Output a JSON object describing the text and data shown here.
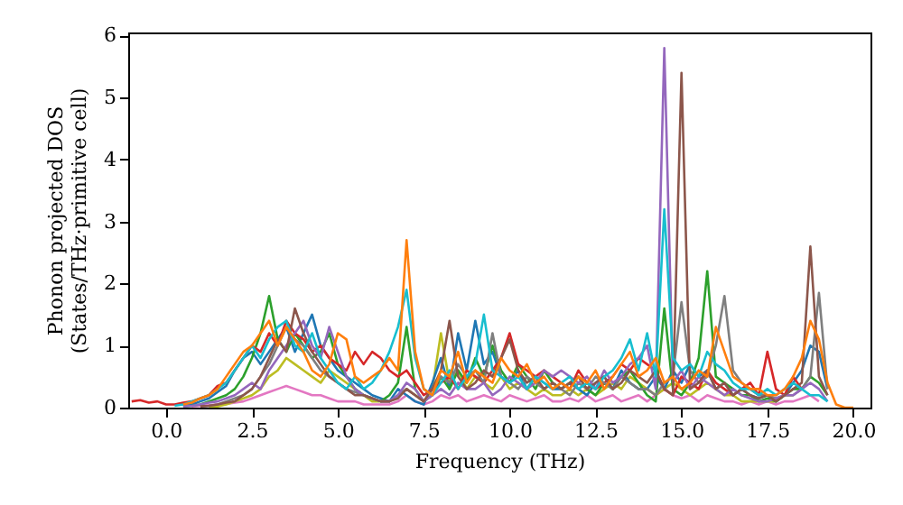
{
  "chart_data": {
    "type": "line",
    "xlabel": "Frequency (THz)",
    "ylabel": "Phonon projected DOS\n(States/THz·primitive cell)",
    "x": [
      -1,
      -0.75,
      -0.5,
      -0.25,
      0,
      0.25,
      0.5,
      0.75,
      1,
      1.25,
      1.5,
      1.75,
      2,
      2.25,
      2.5,
      2.75,
      3,
      3.25,
      3.5,
      3.75,
      4,
      4.25,
      4.5,
      4.75,
      5,
      5.25,
      5.5,
      5.75,
      6,
      6.25,
      6.5,
      6.75,
      7,
      7.25,
      7.5,
      7.75,
      8,
      8.25,
      8.5,
      8.75,
      9,
      9.25,
      9.5,
      9.75,
      10,
      10.25,
      10.5,
      10.75,
      11,
      11.25,
      11.5,
      11.75,
      12,
      12.25,
      12.5,
      12.75,
      13,
      13.25,
      13.5,
      13.75,
      14,
      14.25,
      14.5,
      14.75,
      15,
      15.25,
      15.5,
      15.75,
      16,
      16.25,
      16.5,
      16.75,
      17,
      17.25,
      17.5,
      17.75,
      18,
      18.25,
      18.5,
      18.75,
      19,
      19.25,
      19.5,
      19.75,
      20
    ],
    "series": [
      {
        "color": "#e377c2",
        "values": [
          null,
          null,
          null,
          null,
          null,
          null,
          null,
          0.02,
          0.03,
          0.04,
          0.05,
          0.06,
          0.08,
          0.1,
          0.15,
          0.2,
          0.25,
          0.3,
          0.35,
          0.3,
          0.25,
          0.2,
          0.2,
          0.15,
          0.1,
          0.1,
          0.1,
          0.05,
          0.05,
          0.05,
          0.05,
          0.1,
          0.2,
          0.1,
          0.05,
          0.1,
          0.2,
          0.15,
          0.2,
          0.1,
          0.15,
          0.2,
          0.15,
          0.1,
          0.2,
          0.15,
          0.1,
          0.15,
          0.2,
          0.1,
          0.1,
          0.15,
          0.1,
          0.2,
          0.1,
          0.15,
          0.2,
          0.1,
          0.15,
          0.2,
          0.1,
          0.2,
          0.3,
          0.2,
          0.15,
          0.2,
          0.1,
          0.2,
          0.15,
          0.1,
          0.1,
          0.05,
          0.1,
          0.05,
          0.1,
          0.05,
          0.1,
          0.1,
          0.15,
          0.2,
          0.1,
          null,
          null,
          null,
          null
        ]
      },
      {
        "color": "#bcbd22",
        "values": [
          null,
          null,
          null,
          null,
          null,
          null,
          null,
          null,
          null,
          0.01,
          0.02,
          0.05,
          0.1,
          0.15,
          0.2,
          0.3,
          0.5,
          0.6,
          0.8,
          0.7,
          0.6,
          0.5,
          0.4,
          0.6,
          0.5,
          0.4,
          0.3,
          0.2,
          0.1,
          0.1,
          0.1,
          0.2,
          0.3,
          0.2,
          0.1,
          0.3,
          1.2,
          0.4,
          0.6,
          0.3,
          0.5,
          0.4,
          0.3,
          0.5,
          0.3,
          0.4,
          0.3,
          0.2,
          0.3,
          0.2,
          0.2,
          0.3,
          0.2,
          0.3,
          0.2,
          0.3,
          0.4,
          0.3,
          0.5,
          0.4,
          0.3,
          0.2,
          0.3,
          0.4,
          0.3,
          0.2,
          0.3,
          0.4,
          0.3,
          0.2,
          0.2,
          0.1,
          0.1,
          0.1,
          0.1,
          0.1,
          0.2,
          0.2,
          null,
          null,
          null,
          null,
          null,
          null,
          null
        ]
      },
      {
        "color": "#1f77b4",
        "values": [
          null,
          null,
          null,
          null,
          null,
          null,
          0.03,
          0.05,
          0.1,
          0.15,
          0.25,
          0.35,
          0.6,
          0.8,
          0.9,
          0.7,
          0.9,
          1.1,
          1.3,
          0.9,
          1.2,
          1.5,
          1.0,
          0.8,
          0.6,
          0.5,
          0.4,
          0.3,
          0.2,
          0.15,
          0.1,
          0.3,
          0.2,
          0.1,
          0.05,
          0.4,
          0.8,
          0.3,
          1.2,
          0.6,
          1.4,
          0.7,
          0.9,
          0.5,
          0.4,
          0.6,
          0.3,
          0.5,
          0.4,
          0.3,
          0.3,
          0.4,
          0.3,
          0.2,
          0.4,
          0.5,
          0.3,
          0.6,
          0.4,
          0.3,
          0.3,
          0.5,
          0.3,
          0.6,
          0.4,
          0.7,
          0.5,
          0.6,
          0.3,
          0.4,
          0.2,
          0.3,
          0.2,
          0.15,
          0.2,
          0.1,
          0.2,
          0.4,
          0.6,
          1.0,
          0.9,
          0.3,
          null,
          null,
          null
        ]
      },
      {
        "color": "#2ca02c",
        "values": [
          null,
          null,
          null,
          null,
          null,
          null,
          0.02,
          0.03,
          0.05,
          0.1,
          0.15,
          0.2,
          0.3,
          0.5,
          0.8,
          1.2,
          1.8,
          1.1,
          0.9,
          1.2,
          1.0,
          0.8,
          0.9,
          1.2,
          0.7,
          0.5,
          0.3,
          0.2,
          0.15,
          0.1,
          0.2,
          0.4,
          1.3,
          0.3,
          0.1,
          0.2,
          0.5,
          0.3,
          0.6,
          0.4,
          0.8,
          0.5,
          1.0,
          0.6,
          0.4,
          0.7,
          0.5,
          0.3,
          0.6,
          0.4,
          0.3,
          0.4,
          0.5,
          0.3,
          0.2,
          0.4,
          0.3,
          0.5,
          0.6,
          0.4,
          0.2,
          0.1,
          1.6,
          0.3,
          0.2,
          0.4,
          0.8,
          2.2,
          0.5,
          0.4,
          0.3,
          0.2,
          0.2,
          0.1,
          0.15,
          0.1,
          0.2,
          0.3,
          0.3,
          0.5,
          0.4,
          0.2,
          null,
          null,
          null
        ]
      },
      {
        "color": "#d62728",
        "values": [
          0.1,
          0.12,
          0.08,
          0.1,
          0.05,
          0.05,
          0.08,
          0.1,
          0.15,
          0.2,
          0.35,
          0.4,
          0.6,
          0.8,
          1.0,
          0.9,
          1.2,
          1.0,
          1.4,
          1.2,
          1.1,
          0.9,
          1.0,
          0.8,
          0.7,
          0.6,
          0.9,
          0.7,
          0.9,
          0.8,
          0.6,
          0.5,
          0.6,
          0.4,
          0.2,
          0.3,
          0.4,
          0.5,
          0.3,
          0.6,
          0.5,
          0.4,
          0.6,
          0.8,
          1.2,
          0.7,
          0.6,
          0.5,
          0.6,
          0.5,
          0.4,
          0.3,
          0.6,
          0.4,
          0.3,
          0.4,
          0.5,
          0.7,
          0.6,
          0.8,
          0.7,
          0.6,
          0.3,
          0.2,
          0.5,
          0.4,
          0.3,
          0.6,
          0.4,
          0.3,
          0.2,
          0.3,
          0.4,
          0.2,
          0.9,
          0.3,
          0.2,
          0.5,
          0.3,
          null,
          null,
          null,
          null,
          null,
          null
        ]
      },
      {
        "color": "#7f7f7f",
        "values": [
          null,
          null,
          null,
          null,
          null,
          null,
          null,
          null,
          0.02,
          0.03,
          0.05,
          0.1,
          0.15,
          0.2,
          0.3,
          0.5,
          0.7,
          1.0,
          1.3,
          1.1,
          1.0,
          0.8,
          0.6,
          0.5,
          0.4,
          0.3,
          0.25,
          0.2,
          0.15,
          0.1,
          0.1,
          0.2,
          0.3,
          0.2,
          0.1,
          0.3,
          0.5,
          0.4,
          0.7,
          0.5,
          0.6,
          0.4,
          1.2,
          0.5,
          0.4,
          0.3,
          0.5,
          0.4,
          0.3,
          0.4,
          0.3,
          0.2,
          0.4,
          0.3,
          0.5,
          0.4,
          0.3,
          0.5,
          0.4,
          0.3,
          0.3,
          0.2,
          0.4,
          0.5,
          1.7,
          0.6,
          0.4,
          0.5,
          1.0,
          1.8,
          0.6,
          0.4,
          0.3,
          0.2,
          0.2,
          0.15,
          0.2,
          0.2,
          0.3,
          0.5,
          1.85,
          0.3,
          null,
          null,
          null
        ]
      },
      {
        "color": "#9467bd",
        "values": [
          null,
          null,
          null,
          null,
          null,
          null,
          0.02,
          0.03,
          0.05,
          0.08,
          0.1,
          0.15,
          0.2,
          0.3,
          0.4,
          0.3,
          0.6,
          0.8,
          1.0,
          1.2,
          1.4,
          1.0,
          0.8,
          1.3,
          0.9,
          0.5,
          0.3,
          0.2,
          0.15,
          0.1,
          0.1,
          0.2,
          0.4,
          0.3,
          0.1,
          0.2,
          0.3,
          0.2,
          0.4,
          0.3,
          0.3,
          0.4,
          0.2,
          0.3,
          0.5,
          0.4,
          0.3,
          0.4,
          0.6,
          0.5,
          0.6,
          0.5,
          0.4,
          0.5,
          0.3,
          0.6,
          0.4,
          0.5,
          0.7,
          0.8,
          1.0,
          0.3,
          5.8,
          0.4,
          0.6,
          0.3,
          0.5,
          0.4,
          0.3,
          0.2,
          0.3,
          0.2,
          0.15,
          0.1,
          0.1,
          0.15,
          0.2,
          0.2,
          0.3,
          0.4,
          0.3,
          0.1,
          null,
          null,
          null
        ]
      },
      {
        "color": "#8c564b",
        "values": [
          null,
          null,
          null,
          null,
          null,
          null,
          null,
          null,
          0.02,
          0.03,
          0.05,
          0.08,
          0.1,
          0.2,
          0.3,
          0.5,
          0.8,
          1.1,
          0.9,
          1.6,
          1.2,
          0.9,
          0.7,
          0.5,
          0.4,
          0.3,
          0.2,
          0.2,
          0.15,
          0.1,
          0.1,
          0.15,
          0.3,
          0.2,
          0.1,
          0.3,
          0.6,
          1.4,
          0.5,
          0.3,
          0.4,
          0.6,
          0.5,
          0.8,
          1.1,
          0.6,
          0.4,
          0.5,
          0.3,
          0.4,
          0.3,
          0.4,
          0.5,
          0.3,
          0.4,
          0.5,
          0.3,
          0.4,
          0.6,
          0.5,
          0.4,
          0.6,
          0.3,
          0.2,
          5.4,
          0.3,
          0.4,
          0.6,
          0.3,
          0.4,
          0.2,
          0.3,
          0.2,
          0.15,
          0.2,
          0.1,
          0.2,
          0.3,
          0.4,
          2.6,
          0.5,
          0.2,
          null,
          null,
          null
        ]
      },
      {
        "color": "#17becf",
        "values": [
          null,
          null,
          null,
          null,
          null,
          0.03,
          0.05,
          0.1,
          0.15,
          0.2,
          0.3,
          0.4,
          0.6,
          0.8,
          1.0,
          0.8,
          1.1,
          1.3,
          1.4,
          1.0,
          0.9,
          1.2,
          0.8,
          0.6,
          0.4,
          0.3,
          0.5,
          0.3,
          0.4,
          0.6,
          0.9,
          1.3,
          1.9,
          0.8,
          0.3,
          0.2,
          0.4,
          0.6,
          0.3,
          0.5,
          0.7,
          1.5,
          0.6,
          0.5,
          0.4,
          0.5,
          0.3,
          0.5,
          0.4,
          0.3,
          0.4,
          0.5,
          0.3,
          0.4,
          0.3,
          0.5,
          0.6,
          0.8,
          1.1,
          0.6,
          1.2,
          0.5,
          3.2,
          0.8,
          0.6,
          0.7,
          0.5,
          0.9,
          0.7,
          0.6,
          0.4,
          0.3,
          0.3,
          0.2,
          0.3,
          0.2,
          0.3,
          0.4,
          0.3,
          0.2,
          0.2,
          0.1,
          null,
          null,
          null
        ]
      },
      {
        "color": "#ff7f0e",
        "values": [
          null,
          null,
          null,
          null,
          null,
          null,
          0.05,
          0.08,
          0.15,
          0.2,
          0.3,
          0.5,
          0.7,
          0.9,
          1.0,
          1.2,
          1.4,
          1.0,
          1.3,
          1.1,
          0.9,
          0.6,
          0.5,
          0.7,
          1.2,
          1.1,
          0.5,
          0.4,
          0.5,
          0.6,
          0.8,
          0.6,
          2.7,
          0.9,
          0.3,
          0.2,
          0.6,
          0.5,
          0.9,
          0.4,
          0.6,
          0.5,
          0.4,
          0.8,
          0.6,
          0.5,
          0.7,
          0.4,
          0.5,
          0.3,
          0.4,
          0.3,
          0.5,
          0.4,
          0.6,
          0.3,
          0.5,
          0.7,
          0.9,
          0.5,
          0.6,
          0.8,
          0.4,
          0.5,
          0.3,
          0.4,
          0.6,
          0.5,
          1.3,
          0.9,
          0.5,
          0.4,
          0.3,
          0.3,
          0.2,
          0.2,
          0.3,
          0.5,
          0.8,
          1.4,
          1.1,
          0.4,
          0.05,
          0,
          0
        ]
      }
    ],
    "xlim": [
      -1.1,
      20.5
    ],
    "ylim": [
      0,
      6.05
    ],
    "xticks": [
      {
        "value": 0,
        "label": "0.0"
      },
      {
        "value": 2.5,
        "label": "2.5"
      },
      {
        "value": 5,
        "label": "5.0"
      },
      {
        "value": 7.5,
        "label": "7.5"
      },
      {
        "value": 10,
        "label": "10.0"
      },
      {
        "value": 12.5,
        "label": "12.5"
      },
      {
        "value": 15,
        "label": "15.0"
      },
      {
        "value": 17.5,
        "label": "17.5"
      },
      {
        "value": 20,
        "label": "20.0"
      }
    ],
    "yticks": [
      0,
      1,
      2,
      3,
      4,
      5,
      6
    ]
  }
}
